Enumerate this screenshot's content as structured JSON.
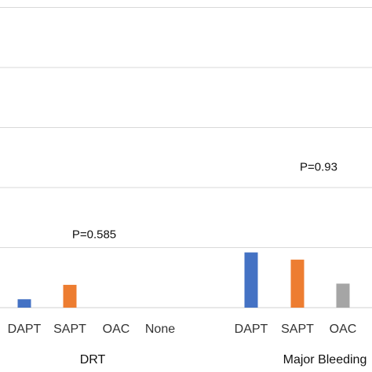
{
  "chart_data": {
    "type": "bar",
    "ylim": [
      0,
      25
    ],
    "grid": true,
    "gridlines": [
      5,
      10,
      15,
      20,
      25
    ],
    "groups": [
      {
        "name": "DRT",
        "pvalue": "P=0.585",
        "categories": [
          "DAPT",
          "SAPT",
          "OAC",
          "None"
        ],
        "values": [
          0.7,
          1.9,
          0,
          0
        ],
        "colors": [
          "#4472C4",
          "#ED7D31",
          "#A5A5A5",
          "#FFC000"
        ]
      },
      {
        "name": "Major Bleeding",
        "pvalue": "P=0.93",
        "categories": [
          "DAPT",
          "SAPT",
          "OAC"
        ],
        "values": [
          4.6,
          4.0,
          2.0
        ],
        "colors": [
          "#4472C4",
          "#ED7D31",
          "#A5A5A5"
        ]
      }
    ]
  }
}
